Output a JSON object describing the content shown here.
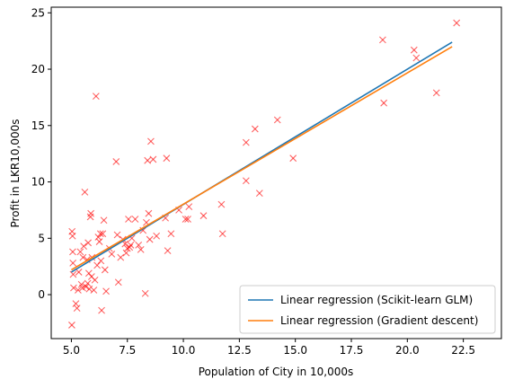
{
  "chart_data": {
    "type": "scatter",
    "xlabel": "Population of City in 10,000s",
    "ylabel": "Profit in LKR10,000s",
    "xlim": [
      4.1,
      24.2
    ],
    "ylim": [
      -3.9,
      25.5
    ],
    "xticks": [
      "5.0",
      "7.5",
      "10.0",
      "12.5",
      "15.0",
      "17.5",
      "20.0",
      "22.5"
    ],
    "xtick_values": [
      5.0,
      7.5,
      10.0,
      12.5,
      15.0,
      17.5,
      20.0,
      22.5
    ],
    "yticks": [
      "0",
      "5",
      "10",
      "15",
      "20",
      "25"
    ],
    "ytick_values": [
      0,
      5,
      10,
      15,
      20,
      25
    ],
    "grid": false,
    "legend_position": "lower-right",
    "colors": {
      "points": "#ff0000",
      "sklearn": "#1f77b4",
      "gd": "#ff7f0e"
    },
    "scatter": {
      "marker": "x",
      "points": [
        [
          5.03,
          5.6
        ],
        [
          5.05,
          5.2
        ],
        [
          5.06,
          3.8
        ],
        [
          5.07,
          2.8
        ],
        [
          5.08,
          1.8
        ],
        [
          5.1,
          0.6
        ],
        [
          5.02,
          -2.7
        ],
        [
          5.2,
          -0.8
        ],
        [
          5.25,
          -1.2
        ],
        [
          5.3,
          0.4
        ],
        [
          5.33,
          2.0
        ],
        [
          5.4,
          3.8
        ],
        [
          5.45,
          0.9
        ],
        [
          5.5,
          0.6
        ],
        [
          5.52,
          3.3
        ],
        [
          5.55,
          4.3
        ],
        [
          5.6,
          9.1
        ],
        [
          5.65,
          0.7
        ],
        [
          5.7,
          3.1
        ],
        [
          5.73,
          1.0
        ],
        [
          5.75,
          4.6
        ],
        [
          5.78,
          1.9
        ],
        [
          5.8,
          0.5
        ],
        [
          5.85,
          6.9
        ],
        [
          5.87,
          7.2
        ],
        [
          5.9,
          1.6
        ],
        [
          5.92,
          3.3
        ],
        [
          6.0,
          0.4
        ],
        [
          6.05,
          1.3
        ],
        [
          6.1,
          17.6
        ],
        [
          6.15,
          2.6
        ],
        [
          6.2,
          5.1
        ],
        [
          6.25,
          4.7
        ],
        [
          6.3,
          5.4
        ],
        [
          6.32,
          3.0
        ],
        [
          6.35,
          -1.4
        ],
        [
          6.4,
          5.4
        ],
        [
          6.45,
          6.6
        ],
        [
          6.5,
          2.2
        ],
        [
          6.55,
          0.3
        ],
        [
          6.7,
          4.1
        ],
        [
          6.8,
          3.6
        ],
        [
          7.0,
          11.8
        ],
        [
          7.05,
          5.3
        ],
        [
          7.1,
          1.1
        ],
        [
          7.2,
          3.3
        ],
        [
          7.3,
          4.9
        ],
        [
          7.4,
          4.5
        ],
        [
          7.45,
          3.7
        ],
        [
          7.5,
          4.1
        ],
        [
          7.55,
          6.7
        ],
        [
          7.6,
          4.2
        ],
        [
          7.65,
          4.4
        ],
        [
          7.7,
          5.0
        ],
        [
          7.85,
          6.7
        ],
        [
          8.0,
          4.4
        ],
        [
          8.1,
          4.0
        ],
        [
          8.2,
          5.7
        ],
        [
          8.3,
          0.1
        ],
        [
          8.35,
          6.4
        ],
        [
          8.4,
          11.9
        ],
        [
          8.45,
          7.2
        ],
        [
          8.5,
          4.9
        ],
        [
          8.55,
          13.6
        ],
        [
          8.65,
          12.0
        ],
        [
          8.8,
          5.2
        ],
        [
          9.2,
          6.8
        ],
        [
          9.25,
          12.1
        ],
        [
          9.3,
          3.9
        ],
        [
          9.45,
          5.4
        ],
        [
          9.8,
          7.5
        ],
        [
          10.1,
          6.7
        ],
        [
          10.2,
          6.7
        ],
        [
          10.25,
          7.8
        ],
        [
          10.9,
          7.0
        ],
        [
          11.7,
          8.0
        ],
        [
          11.75,
          5.4
        ],
        [
          12.8,
          13.5
        ],
        [
          12.8,
          10.1
        ],
        [
          13.2,
          14.7
        ],
        [
          13.4,
          9.0
        ],
        [
          14.2,
          15.5
        ],
        [
          14.9,
          12.1
        ],
        [
          18.9,
          22.6
        ],
        [
          18.95,
          17.0
        ],
        [
          20.3,
          21.7
        ],
        [
          20.4,
          21.0
        ],
        [
          21.3,
          17.9
        ],
        [
          22.2,
          24.1
        ]
      ]
    },
    "series": [
      {
        "name": "Linear regression (Scikit-learn GLM)",
        "x": [
          5.0,
          22.0
        ],
        "y": [
          2.0,
          22.4
        ]
      },
      {
        "name": "Linear regression (Gradient descent)",
        "x": [
          5.0,
          22.0
        ],
        "y": [
          2.2,
          22.0
        ]
      }
    ]
  }
}
